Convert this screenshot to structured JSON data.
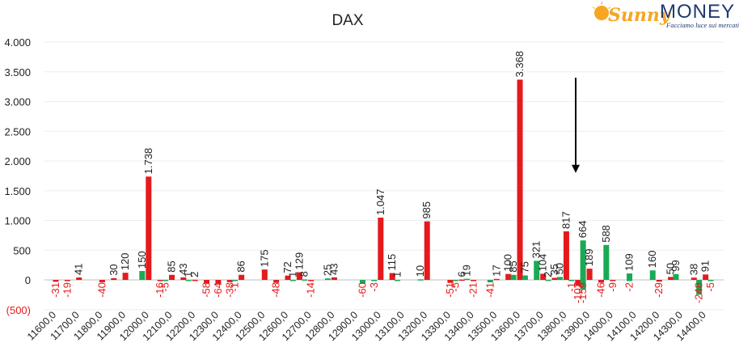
{
  "chart_data": {
    "type": "bar",
    "title": "DAX",
    "xlabel": "",
    "ylabel": "",
    "ylim": [
      -500,
      4000
    ],
    "yticks": [
      -500,
      0,
      500,
      1000,
      1500,
      2000,
      2500,
      3000,
      3500,
      4000
    ],
    "ytick_labels": [
      "(500)",
      "0",
      "500",
      "1.000",
      "1.500",
      "2.000",
      "2.500",
      "3.000",
      "3.500",
      "4.000"
    ],
    "grid": true,
    "legend": "none",
    "xlim": [
      11600,
      14450
    ],
    "xtick_labels": [
      "11600,0",
      "11700,0",
      "11800,0",
      "11900,0",
      "12000,0",
      "12100,0",
      "12200,0",
      "12300,0",
      "12400,0",
      "12500,0",
      "12600,0",
      "12700,0",
      "12800,0",
      "12900,0",
      "13000,0",
      "13100,0",
      "13200,0",
      "13300,0",
      "13400,0",
      "13500,0",
      "13600,0",
      "13700,0",
      "13800,0",
      "13900,0",
      "14000,0",
      "14100,0",
      "14200,0",
      "14300,0",
      "14400,0"
    ],
    "series": [
      {
        "color": "#e41a1c",
        "values": [
          {
            "x": 11600,
            "y": -31,
            "label": "-31"
          },
          {
            "x": 11650,
            "y": -19,
            "label": "-19"
          },
          {
            "x": 11700,
            "y": 41,
            "label": "41"
          },
          {
            "x": 11800,
            "y": -40,
            "label": "-40"
          },
          {
            "x": 11850,
            "y": 30,
            "label": "30"
          },
          {
            "x": 11900,
            "y": 120,
            "label": "120"
          },
          {
            "x": 12000,
            "y": 1738,
            "label": "1.738"
          },
          {
            "x": 12050,
            "y": -16,
            "label": "-16"
          },
          {
            "x": 12100,
            "y": 85,
            "label": "85"
          },
          {
            "x": 12150,
            "y": 43,
            "label": "43"
          },
          {
            "x": 12200,
            "y": 2,
            "label": "2"
          },
          {
            "x": 12250,
            "y": -58,
            "label": "-58"
          },
          {
            "x": 12300,
            "y": -64,
            "label": "-64"
          },
          {
            "x": 12350,
            "y": -38,
            "label": "-38"
          },
          {
            "x": 12400,
            "y": 86,
            "label": "86"
          },
          {
            "x": 12500,
            "y": 175,
            "label": "175"
          },
          {
            "x": 12550,
            "y": -48,
            "label": "-48"
          },
          {
            "x": 12600,
            "y": 72,
            "label": "72"
          },
          {
            "x": 12650,
            "y": 129,
            "label": "129"
          },
          {
            "x": 12700,
            "y": -14,
            "label": "-14"
          },
          {
            "x": 12800,
            "y": 43,
            "label": "43"
          },
          {
            "x": 13000,
            "y": 1047,
            "label": "1.047"
          },
          {
            "x": 13050,
            "y": 115,
            "label": "115"
          },
          {
            "x": 13200,
            "y": 985,
            "label": "985"
          },
          {
            "x": 13300,
            "y": -51,
            "label": "-51"
          },
          {
            "x": 13350,
            "y": 6,
            "label": "6"
          },
          {
            "x": 13400,
            "y": -21,
            "label": "-21"
          },
          {
            "x": 13500,
            "y": 17,
            "label": "17"
          },
          {
            "x": 13550,
            "y": 100,
            "label": "100"
          },
          {
            "x": 13600,
            "y": 3368,
            "label": "3.368"
          },
          {
            "x": 13700,
            "y": 104,
            "label": "104"
          },
          {
            "x": 13750,
            "y": 35,
            "label": "35"
          },
          {
            "x": 13800,
            "y": 817,
            "label": "817"
          },
          {
            "x": 13850,
            "y": -102,
            "label": "-102"
          },
          {
            "x": 13900,
            "y": 189,
            "label": "189"
          },
          {
            "x": 13950,
            "y": -46,
            "label": "-46"
          },
          {
            "x": 14000,
            "y": -9,
            "label": "-9"
          },
          {
            "x": 14200,
            "y": -29,
            "label": "-29"
          },
          {
            "x": 14250,
            "y": 50,
            "label": "50"
          },
          {
            "x": 14350,
            "y": 38,
            "label": "38"
          },
          {
            "x": 14400,
            "y": 91,
            "label": "91"
          }
        ]
      },
      {
        "color": "#1aaa55",
        "values": [
          {
            "x": 12000,
            "y": 150,
            "label": "150"
          },
          {
            "x": 12100,
            "y": -5,
            "label": "-5"
          },
          {
            "x": 12200,
            "y": 1,
            "label": "1"
          },
          {
            "x": 12400,
            "y": -1,
            "label": "-1"
          },
          {
            "x": 12650,
            "y": 1,
            "label": "1"
          },
          {
            "x": 12700,
            "y": 8,
            "label": "8"
          },
          {
            "x": 12800,
            "y": 25,
            "label": "25"
          },
          {
            "x": 12950,
            "y": -60,
            "label": "-60"
          },
          {
            "x": 13000,
            "y": -3,
            "label": "-3"
          },
          {
            "x": 13100,
            "y": 1,
            "label": "1"
          },
          {
            "x": 13200,
            "y": 10,
            "label": "10"
          },
          {
            "x": 13350,
            "y": -5,
            "label": "-5"
          },
          {
            "x": 13400,
            "y": 19,
            "label": "19"
          },
          {
            "x": 13500,
            "y": -41,
            "label": "-41"
          },
          {
            "x": 13600,
            "y": 85,
            "label": "85"
          },
          {
            "x": 13650,
            "y": 75,
            "label": "75"
          },
          {
            "x": 13700,
            "y": 321,
            "label": "321"
          },
          {
            "x": 13750,
            "y": 2,
            "label": "2"
          },
          {
            "x": 13800,
            "y": 50,
            "label": "50"
          },
          {
            "x": 13850,
            "y": -1,
            "label": "-1"
          },
          {
            "x": 13900,
            "y": 664,
            "label": "664"
          },
          {
            "x": 13900,
            "y": -159,
            "label": "-159"
          },
          {
            "x": 14000,
            "y": 588,
            "label": "588"
          },
          {
            "x": 14100,
            "y": 109,
            "label": "109"
          },
          {
            "x": 14100,
            "y": -2,
            "label": "-2"
          },
          {
            "x": 14200,
            "y": 160,
            "label": "160"
          },
          {
            "x": 14300,
            "y": 99,
            "label": "99"
          },
          {
            "x": 14400,
            "y": -248,
            "label": "-248"
          },
          {
            "x": 14450,
            "y": -5,
            "label": "-5"
          }
        ]
      }
    ],
    "annotation": {
      "type": "arrow",
      "direction": "down",
      "x": 13850,
      "y_from": 3400,
      "y_to": 1800,
      "color": "#000000"
    }
  },
  "brand": {
    "word1": "Sunny",
    "word2": "MONEY",
    "tagline": "Facciamo luce sui mercati",
    "sun_color": "#f5a623",
    "text_color": "#1f3a6e"
  }
}
